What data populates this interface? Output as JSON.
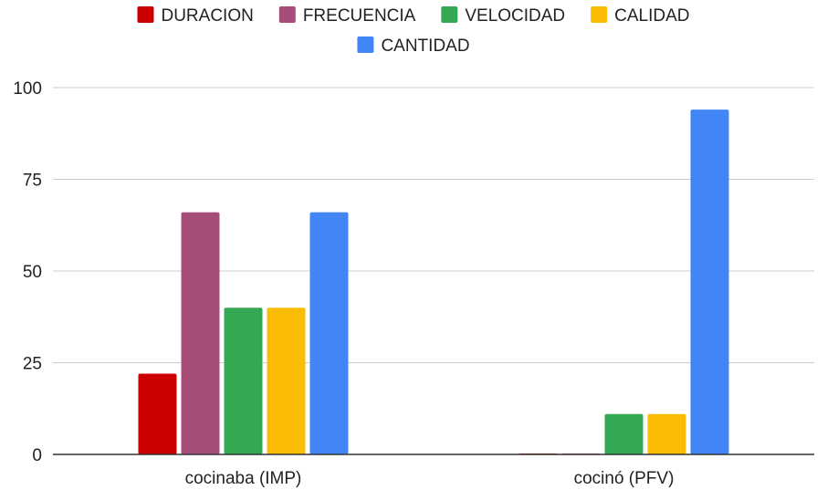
{
  "chart_data": {
    "type": "bar",
    "title": "",
    "xlabel": "",
    "ylabel": "",
    "categories": [
      "cocinaba (IMP)",
      "cocinó (PFV)"
    ],
    "series": [
      {
        "name": "DURACION",
        "color": "#cc0000",
        "values": [
          22,
          0
        ]
      },
      {
        "name": "FRECUENCIA",
        "color": "#a64d79",
        "values": [
          66,
          0
        ]
      },
      {
        "name": "VELOCIDAD",
        "color": "#34a853",
        "values": [
          40,
          11
        ]
      },
      {
        "name": "CALIDAD",
        "color": "#fbbc04",
        "values": [
          40,
          11
        ]
      },
      {
        "name": "CANTIDAD",
        "color": "#4285f4",
        "values": [
          66,
          94
        ]
      }
    ],
    "yticks": [
      0,
      25,
      50,
      75,
      100
    ],
    "ylim": [
      0,
      100
    ],
    "grid": true,
    "legend": "top"
  }
}
